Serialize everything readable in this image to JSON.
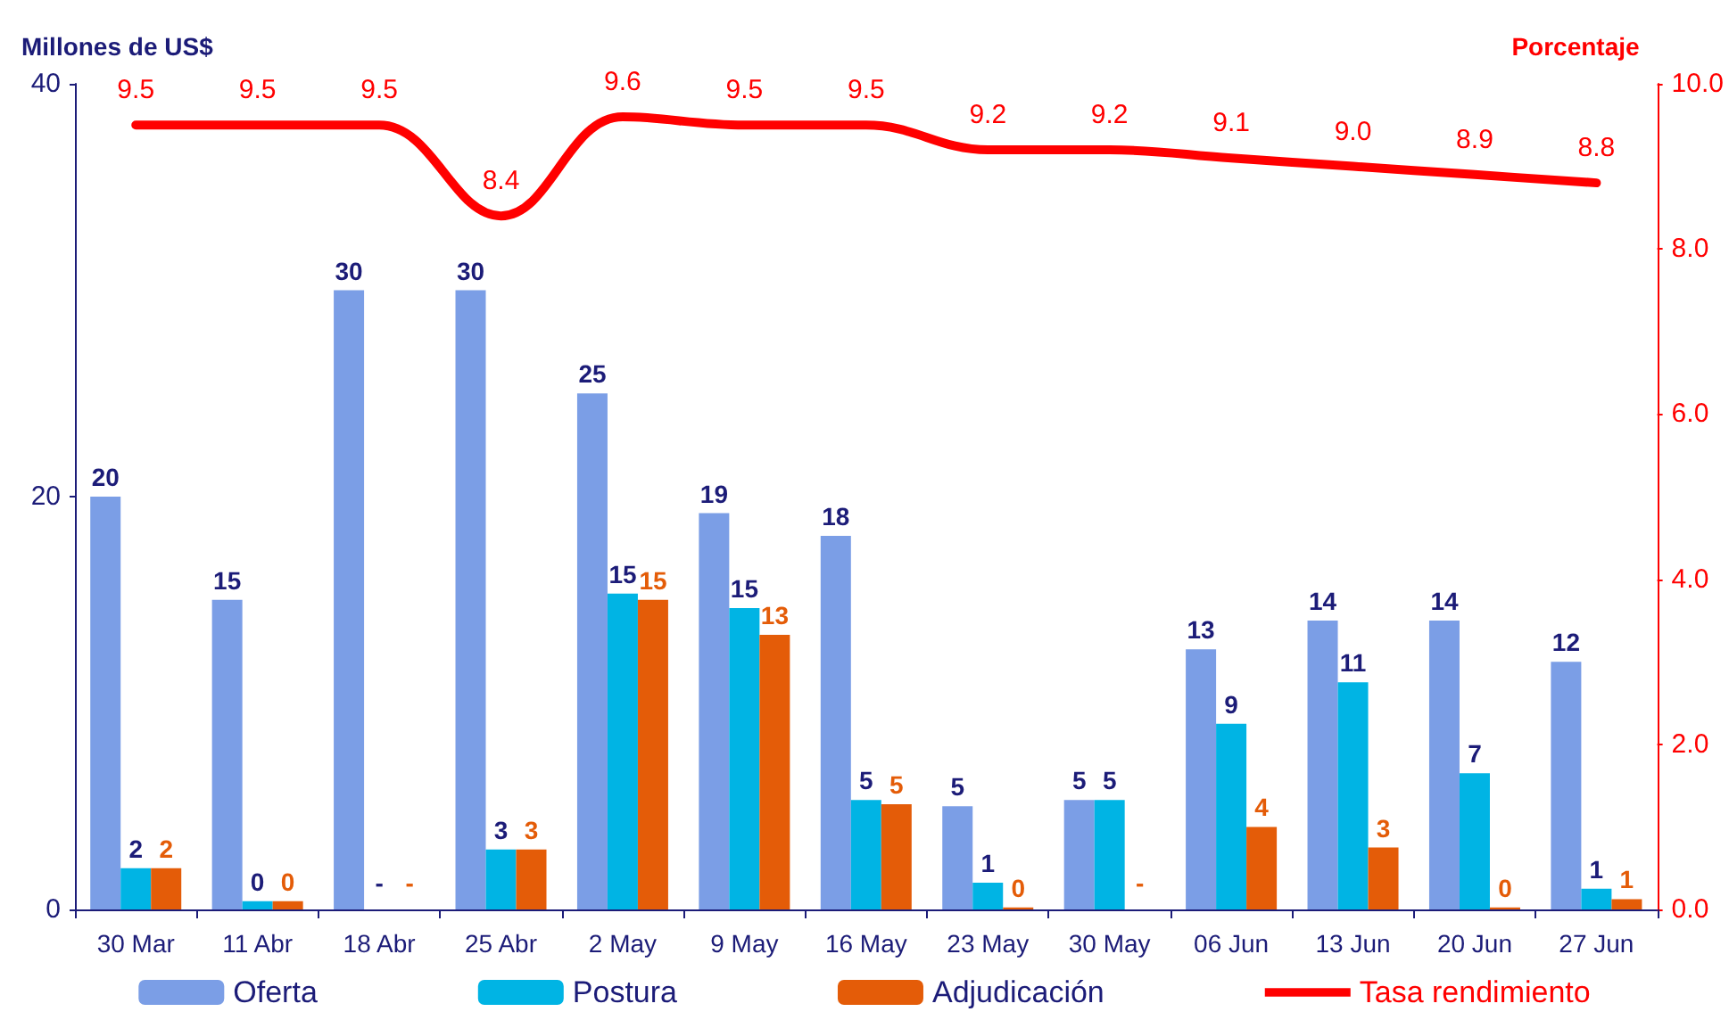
{
  "chart_data": {
    "type": "bar",
    "categories": [
      "30 Mar",
      "11 Abr",
      "18 Abr",
      "25 Abr",
      "2 May",
      "9 May",
      "16 May",
      "23 May",
      "30 May",
      "06 Jun",
      "13 Jun",
      "20 Jun",
      "27 Jun"
    ],
    "ylabel": "Millones de US$",
    "y2label": "Porcentaje",
    "ylim": [
      0,
      40
    ],
    "yticks": [
      0,
      20,
      40
    ],
    "y2lim": [
      0,
      10
    ],
    "y2ticks": [
      {
        "value": 0,
        "label": "0.0"
      },
      {
        "value": 2,
        "label": "2.0"
      },
      {
        "value": 4,
        "label": "4.0"
      },
      {
        "value": 6,
        "label": "6.0"
      },
      {
        "value": 8,
        "label": "8.0"
      },
      {
        "value": 10,
        "label": "10.0"
      }
    ],
    "grid": false,
    "legend": "bottom",
    "series": [
      {
        "name": "Oferta",
        "type": "bar",
        "color": "#7b9ee6",
        "values": [
          20,
          15,
          30,
          30,
          25,
          19.2,
          18.1,
          5,
          5.3,
          12.6,
          14,
          14,
          12
        ],
        "value_labels": [
          "20",
          "15",
          "30",
          "30",
          "25",
          "19",
          "18",
          "5",
          "5",
          "13",
          "14",
          "14",
          "12"
        ]
      },
      {
        "name": "Postura",
        "type": "bar",
        "color": "#00b4e4",
        "values": [
          2,
          0.4,
          null,
          2.9,
          15.3,
          14.6,
          5.3,
          1.3,
          5.3,
          9,
          11,
          6.6,
          1
        ],
        "value_labels": [
          "2",
          "0",
          "-",
          "3",
          "15",
          "15",
          "5",
          "1",
          "5",
          "9",
          "11",
          "7",
          "1"
        ]
      },
      {
        "name": "Adjudicación",
        "type": "bar",
        "color": "#e45c08",
        "values": [
          2,
          0.4,
          null,
          2.9,
          15,
          13.3,
          5.1,
          0.1,
          null,
          4,
          3,
          0.1,
          0.5
        ],
        "value_labels": [
          "2",
          "0",
          "-",
          "3",
          "15",
          "13",
          "5",
          "0",
          "-",
          "4",
          "3",
          "0",
          "1"
        ]
      },
      {
        "name": "Tasa rendimiento",
        "type": "line",
        "axis": "y2",
        "color": "#ff0000",
        "marker": "none",
        "line_style": "solid",
        "values": [
          9.5,
          9.5,
          9.5,
          8.4,
          9.6,
          9.5,
          9.5,
          9.2,
          9.2,
          9.1,
          9.0,
          8.9,
          8.8
        ],
        "value_labels": [
          "9.5",
          "9.5",
          "9.5",
          "8.4",
          "9.6",
          "9.5",
          "9.5",
          "9.2",
          "9.2",
          "9.1",
          "9.0",
          "8.9",
          "8.8"
        ]
      }
    ]
  }
}
